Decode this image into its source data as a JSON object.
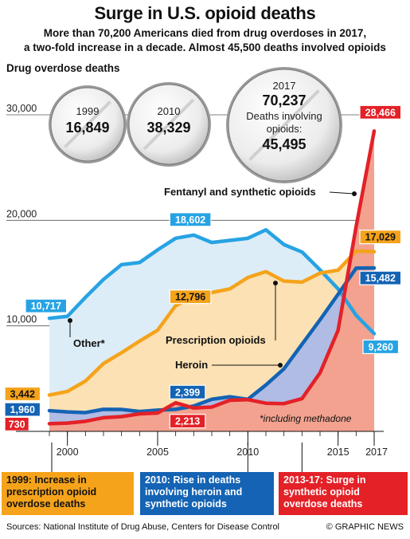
{
  "header": {
    "title": "Surge in U.S. opioid deaths",
    "subtitle_line1": "More than 70,200 Americans died from drug overdoses in 2017,",
    "subtitle_line2": "a two-fold increase in a decade. Almost 45,500 deaths involved opioids"
  },
  "pills": [
    {
      "year": "1999",
      "value": "16,849"
    },
    {
      "year": "2010",
      "value": "38,329"
    },
    {
      "year": "2017",
      "value": "70,237",
      "extra_line1": "Deaths involving",
      "extra_line2": "opioids:",
      "extra_value": "45,495"
    }
  ],
  "labels": {
    "fentanyl": "Fentanyl and synthetic opioids",
    "other": "Other*",
    "prescription": "Prescription opioids",
    "heroin": "Heroin",
    "footnote": "*including methadone"
  },
  "callouts": [
    {
      "text": "1999: Increase in prescription opioid overdose deaths"
    },
    {
      "text": "2010: Rise in deaths involving heroin and synthetic opioids"
    },
    {
      "text": "2013-17: Surge in synthetic opioid overdose deaths"
    }
  ],
  "footer": {
    "sources": "Sources: National Institute of Drug Abuse, Centers for Disease Control",
    "brand": "© GRAPHIC NEWS"
  },
  "chart_data": {
    "type": "line",
    "ylabel": "Drug overdose deaths",
    "ylim": [
      0,
      30000
    ],
    "yticks": [
      10000,
      20000,
      30000
    ],
    "ytick_labels": [
      "10,000",
      "20,000",
      "30,000"
    ],
    "xlim": [
      1999,
      2017
    ],
    "xticks": [
      2000,
      2005,
      2010,
      2015,
      2017
    ],
    "xtick_labels": [
      "2000",
      "2005",
      "2010",
      "2015",
      "2017"
    ],
    "grid": true,
    "x": [
      1999,
      2000,
      2001,
      2002,
      2003,
      2004,
      2005,
      2006,
      2007,
      2008,
      2009,
      2010,
      2011,
      2012,
      2013,
      2014,
      2015,
      2016,
      2017
    ],
    "series": [
      {
        "name": "Other*",
        "color": "#27a3e3",
        "fill": "#dcedf8",
        "label_first": "10,717",
        "label_last": "9,260",
        "label_peak": "18,602",
        "peak_year": 2007,
        "values": [
          10717,
          10900,
          12700,
          14400,
          15800,
          16000,
          17200,
          18300,
          18602,
          17900,
          18100,
          18300,
          19100,
          17700,
          17000,
          15300,
          13500,
          11000,
          9260
        ]
      },
      {
        "name": "Prescription opioids",
        "color": "#f5a31b",
        "fill": "#fbe1b4",
        "label_first": "3,442",
        "label_last": "17,029",
        "label_peak": "12,796",
        "peak_year": 2007,
        "values": [
          3442,
          3785,
          4770,
          6430,
          7455,
          8555,
          9590,
          11915,
          12796,
          13150,
          13500,
          14583,
          15140,
          14240,
          14145,
          15000,
          15280,
          17087,
          17029
        ]
      },
      {
        "name": "Heroin",
        "color": "#1463b4",
        "fill": "#b0bce4",
        "label_first": "1,960",
        "label_last": "15,482",
        "label_peak": "2,399",
        "peak_year": 2007,
        "values": [
          1960,
          1842,
          1779,
          2089,
          2080,
          1878,
          2009,
          2088,
          2399,
          3041,
          3278,
          3036,
          4397,
          5925,
          8257,
          10574,
          12989,
          15469,
          15482
        ]
      },
      {
        "name": "Fentanyl and synthetic opioids",
        "color": "#e32127",
        "fill": "#f2a28f",
        "label_first": "730",
        "label_last": "28,466",
        "label_peak": "2,213",
        "peak_year": 2007,
        "values": [
          730,
          782,
          957,
          1295,
          1400,
          1664,
          1742,
          2707,
          2213,
          2306,
          2946,
          3007,
          2666,
          2628,
          3105,
          5544,
          9580,
          19413,
          28466
        ]
      }
    ]
  }
}
